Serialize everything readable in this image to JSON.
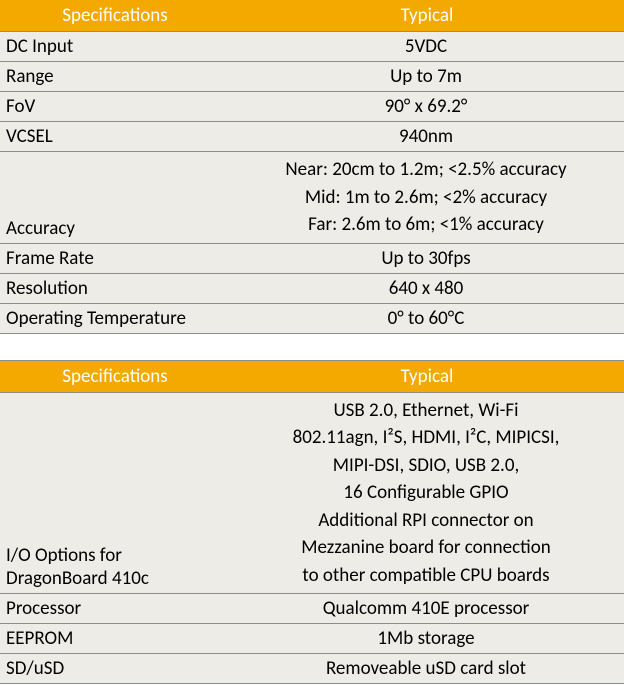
{
  "colors": {
    "header_bg": "#f4a900",
    "header_text": "#ffffff",
    "row_bg": "#eeece6",
    "row_text": "#000000",
    "border": "#8c8c8c",
    "spacer_border": "#8c8c8c"
  },
  "layout": {
    "col1_width": 230,
    "col2_width": 394
  },
  "table1": {
    "header": {
      "c1": "Specifications",
      "c2": "Typical"
    },
    "rows": [
      {
        "c1": "DC Input",
        "c2": "5VDC"
      },
      {
        "c1": "Range",
        "c2": "Up to 7m"
      },
      {
        "c1": "FoV",
        "c2": "90° x 69.2°"
      },
      {
        "c1": "VCSEL",
        "c2": "940nm"
      },
      {
        "c1": "Accuracy",
        "c2": "Near: 20cm to 1.2m; <2.5% accuracy\nMid: 1m to 2.6m; <2% accuracy\nFar: 2.6m to 6m; <1% accuracy"
      },
      {
        "c1": "Frame Rate",
        "c2": "Up to 30fps"
      },
      {
        "c1": "Resolution",
        "c2": "640 x 480"
      },
      {
        "c1": "Operating Temperature",
        "c2": "0° to 60°C"
      }
    ]
  },
  "table2": {
    "header": {
      "c1": "Specifications",
      "c2": "Typical"
    },
    "rows": [
      {
        "c1": "I/O Options for DragonBoard 410c",
        "c2": "USB 2.0, Ethernet, Wi-Fi\n802.11agn, I²S, HDMI, I²C, MIPICSI,\nMIPI-DSI, SDIO, USB 2.0,\n16 Configurable GPIO\nAdditional RPI connector on\nMezzanine board for connection\nto other compatible CPU boards"
      },
      {
        "c1": "Processor",
        "c2": "Qualcomm 410E processor"
      },
      {
        "c1": "EEPROM",
        "c2": "1Mb storage"
      },
      {
        "c1": "SD/uSD",
        "c2": "Removeable uSD card slot"
      }
    ]
  }
}
